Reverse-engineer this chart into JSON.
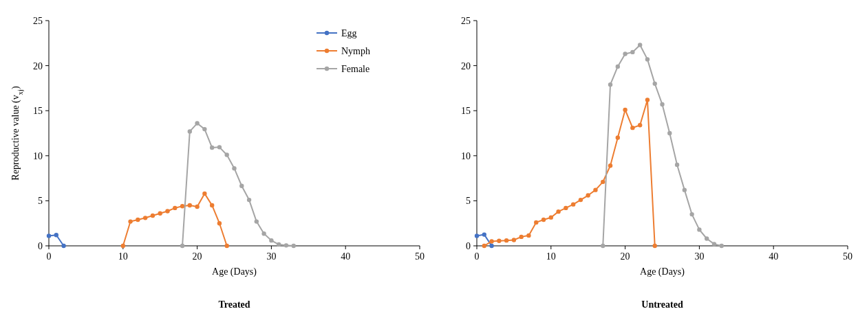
{
  "chart_data": [
    {
      "type": "line",
      "title": "Treated",
      "xlabel": "Age (Days)",
      "ylabel": "Reproductive  value (v$_{xj}$)",
      "marker": "circle",
      "legend": "top right",
      "xlim": [
        0,
        50
      ],
      "xticks": [
        0,
        10,
        20,
        30,
        40,
        50
      ],
      "ylim": [
        0,
        25
      ],
      "yticks": [
        0,
        5,
        10,
        15,
        20,
        25
      ],
      "series": [
        {
          "name": "Egg",
          "color": "#4472c4",
          "x": [
            0,
            1,
            2
          ],
          "values": [
            1.1,
            1.2,
            0
          ]
        },
        {
          "name": "Nymph",
          "color": "#ed7d31",
          "x": [
            10,
            11,
            12,
            13,
            14,
            15,
            16,
            17,
            18,
            19,
            20,
            21,
            22,
            23,
            24
          ],
          "values": [
            0,
            2.7,
            2.9,
            3.1,
            3.35,
            3.6,
            3.85,
            4.2,
            4.4,
            4.5,
            4.35,
            5.8,
            4.5,
            2.5,
            0
          ]
        },
        {
          "name": "Female",
          "color": "#a5a5a5",
          "x": [
            18,
            19,
            20,
            21,
            22,
            23,
            24,
            25,
            26,
            27,
            28,
            29,
            30,
            31,
            32,
            33
          ],
          "values": [
            0,
            12.7,
            13.6,
            12.95,
            10.9,
            10.95,
            10.1,
            8.6,
            6.65,
            5.1,
            2.7,
            1.35,
            0.6,
            0.15,
            0.05,
            0
          ]
        }
      ]
    },
    {
      "type": "line",
      "title": "Untreated",
      "xlabel": "Age (Days)",
      "marker": "circle",
      "xlim": [
        0,
        50
      ],
      "xticks": [
        0,
        10,
        20,
        30,
        40,
        50
      ],
      "ylim": [
        0,
        25
      ],
      "yticks": [
        0,
        5,
        10,
        15,
        20,
        25
      ],
      "series": [
        {
          "color": "#4472c4",
          "x": [
            0,
            1,
            2
          ],
          "values": [
            1.1,
            1.25,
            0
          ]
        },
        {
          "color": "#ed7d31",
          "x": [
            1,
            2,
            3,
            4,
            5,
            6,
            7,
            8,
            9,
            10,
            11,
            12,
            13,
            14,
            15,
            16,
            17,
            18,
            19,
            20,
            21,
            22,
            23,
            24
          ],
          "values": [
            0,
            0.5,
            0.55,
            0.6,
            0.65,
            1.0,
            1.15,
            2.6,
            2.9,
            3.15,
            3.8,
            4.2,
            4.6,
            5.1,
            5.6,
            6.2,
            7.1,
            8.9,
            12.0,
            15.1,
            13.1,
            13.4,
            16.2,
            0
          ]
        },
        {
          "color": "#a5a5a5",
          "x": [
            17,
            18,
            19,
            20,
            21,
            22,
            23,
            24,
            25,
            26,
            27,
            28,
            29,
            30,
            31,
            32,
            33
          ],
          "values": [
            0,
            17.9,
            19.9,
            21.3,
            21.5,
            22.3,
            20.7,
            18.0,
            15.7,
            12.5,
            9.0,
            6.2,
            3.5,
            1.8,
            0.8,
            0.2,
            0
          ]
        }
      ]
    }
  ]
}
